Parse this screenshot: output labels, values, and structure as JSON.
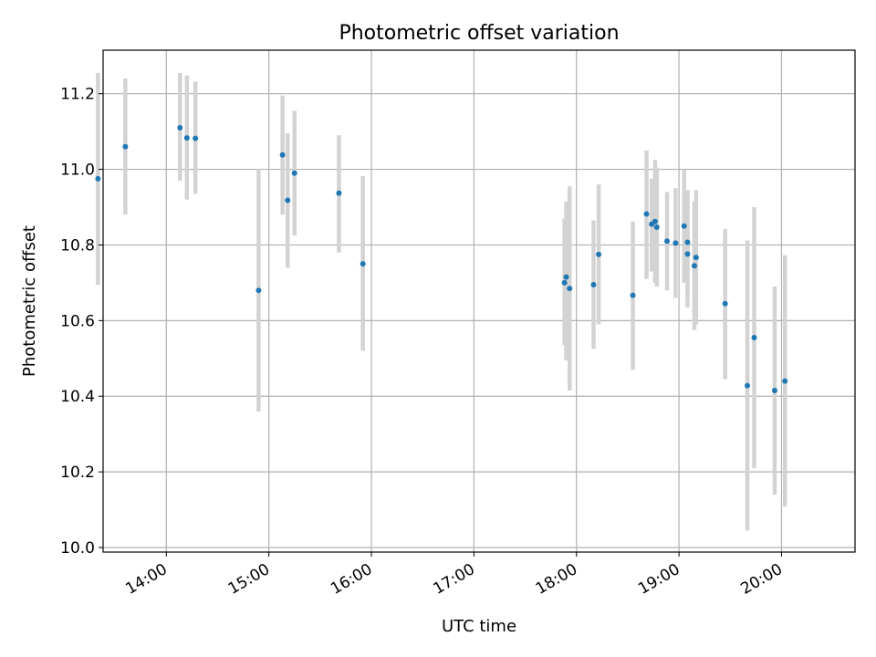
{
  "chart_data": {
    "type": "scatter",
    "title": "Photometric offset variation",
    "xlabel": "UTC time",
    "ylabel": "Photometric offset",
    "x_axis": "time",
    "xlim": [
      "13:23",
      "20:43"
    ],
    "ylim": [
      9.988,
      11.315
    ],
    "grid": true,
    "x_ticks": [
      "14:00",
      "15:00",
      "16:00",
      "17:00",
      "18:00",
      "19:00",
      "20:00"
    ],
    "y_ticks": [
      "10.0",
      "10.2",
      "10.4",
      "10.6",
      "10.8",
      "11.0",
      "11.2"
    ],
    "marker_color": "#1f77b4",
    "errorbar_color": "#d3d3d3",
    "points": [
      {
        "t": "13:20",
        "y": 10.975,
        "lo": 10.695,
        "hi": 11.255
      },
      {
        "t": "13:36",
        "y": 11.06,
        "lo": 10.88,
        "hi": 11.24
      },
      {
        "t": "14:08",
        "y": 11.11,
        "lo": 10.97,
        "hi": 11.255
      },
      {
        "t": "14:12",
        "y": 11.083,
        "lo": 10.92,
        "hi": 11.248
      },
      {
        "t": "14:17",
        "y": 11.082,
        "lo": 10.935,
        "hi": 11.232
      },
      {
        "t": "14:54",
        "y": 10.68,
        "lo": 10.36,
        "hi": 11.0
      },
      {
        "t": "15:08",
        "y": 11.038,
        "lo": 10.88,
        "hi": 11.195
      },
      {
        "t": "15:11",
        "y": 10.918,
        "lo": 10.74,
        "hi": 11.095
      },
      {
        "t": "15:15",
        "y": 10.99,
        "lo": 10.825,
        "hi": 11.155
      },
      {
        "t": "15:41",
        "y": 10.937,
        "lo": 10.78,
        "hi": 11.09
      },
      {
        "t": "15:55",
        "y": 10.75,
        "lo": 10.52,
        "hi": 10.982
      },
      {
        "t": "17:53",
        "y": 10.7,
        "lo": 10.535,
        "hi": 10.87
      },
      {
        "t": "17:54",
        "y": 10.715,
        "lo": 10.495,
        "hi": 10.915
      },
      {
        "t": "17:56",
        "y": 10.685,
        "lo": 10.415,
        "hi": 10.955
      },
      {
        "t": "18:10",
        "y": 10.695,
        "lo": 10.525,
        "hi": 10.865
      },
      {
        "t": "18:13",
        "y": 10.775,
        "lo": 10.59,
        "hi": 10.96
      },
      {
        "t": "18:33",
        "y": 10.667,
        "lo": 10.47,
        "hi": 10.862
      },
      {
        "t": "18:41",
        "y": 10.882,
        "lo": 10.71,
        "hi": 11.05
      },
      {
        "t": "18:44",
        "y": 10.855,
        "lo": 10.73,
        "hi": 10.975
      },
      {
        "t": "18:46",
        "y": 10.862,
        "lo": 10.7,
        "hi": 11.025
      },
      {
        "t": "18:47",
        "y": 10.847,
        "lo": 10.69,
        "hi": 11.005
      },
      {
        "t": "18:53",
        "y": 10.81,
        "lo": 10.68,
        "hi": 10.94
      },
      {
        "t": "18:58",
        "y": 10.805,
        "lo": 10.66,
        "hi": 10.95
      },
      {
        "t": "19:03",
        "y": 10.85,
        "lo": 10.7,
        "hi": 10.998
      },
      {
        "t": "19:05",
        "y": 10.807,
        "lo": 10.67,
        "hi": 10.945
      },
      {
        "t": "19:05",
        "y": 10.776,
        "lo": 10.635,
        "hi": 10.925
      },
      {
        "t": "19:09",
        "y": 10.745,
        "lo": 10.575,
        "hi": 10.915
      },
      {
        "t": "19:10",
        "y": 10.767,
        "lo": 10.59,
        "hi": 10.945
      },
      {
        "t": "19:27",
        "y": 10.645,
        "lo": 10.445,
        "hi": 10.842
      },
      {
        "t": "19:40",
        "y": 10.428,
        "lo": 10.045,
        "hi": 10.812
      },
      {
        "t": "19:44",
        "y": 10.555,
        "lo": 10.21,
        "hi": 10.9
      },
      {
        "t": "19:56",
        "y": 10.415,
        "lo": 10.14,
        "hi": 10.69
      },
      {
        "t": "20:02",
        "y": 10.44,
        "lo": 10.108,
        "hi": 10.773
      }
    ]
  }
}
